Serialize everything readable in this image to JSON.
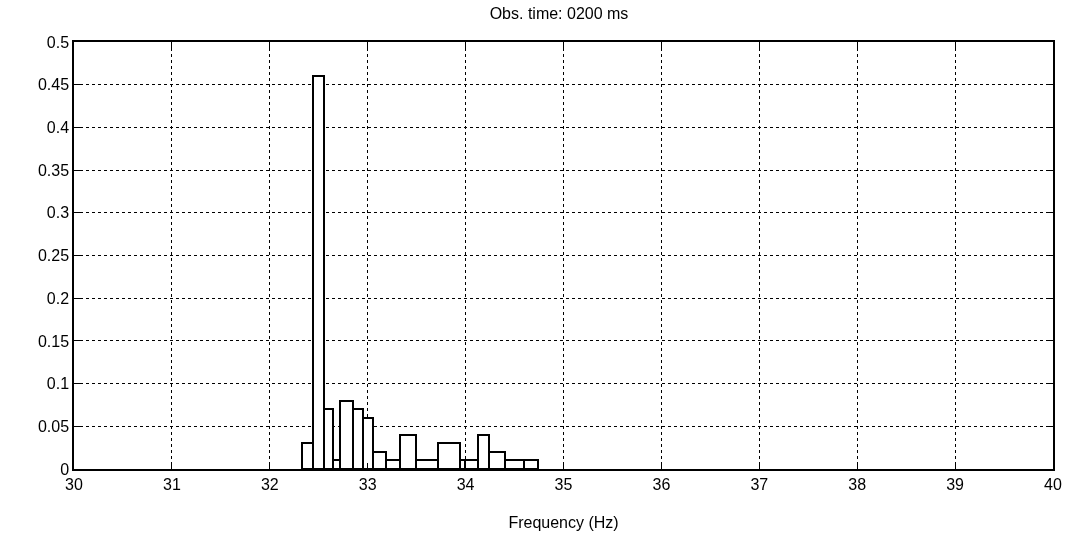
{
  "chart_data": {
    "type": "histogram",
    "title": "Obs. time: 0200 ms",
    "xlabel": "Frequency (Hz)",
    "bins": [
      32.33,
      32.44,
      32.55,
      32.65,
      32.72,
      32.85,
      32.95,
      33.05,
      33.19,
      33.33,
      33.49,
      33.72,
      33.94,
      33.99,
      34.13,
      34.24,
      34.4,
      34.6,
      34.74
    ],
    "values": [
      0.03,
      0.46,
      0.07,
      0.01,
      0.08,
      0.07,
      0.06,
      0.02,
      0.01,
      0.04,
      0.01,
      0.03,
      0.01,
      0.01,
      0.04,
      0.02,
      0.01,
      0.01
    ],
    "color": "#000000",
    "xlim": [
      30,
      40
    ],
    "xticks": [
      30,
      31,
      32,
      33,
      34,
      35,
      36,
      37,
      38,
      39,
      40
    ],
    "ylim": [
      0,
      0.5
    ],
    "yticks": [
      0,
      0.05,
      0.1,
      0.15,
      0.2,
      0.25,
      0.3,
      0.35,
      0.4,
      0.45,
      0.5
    ],
    "grid": true,
    "legend": false
  }
}
